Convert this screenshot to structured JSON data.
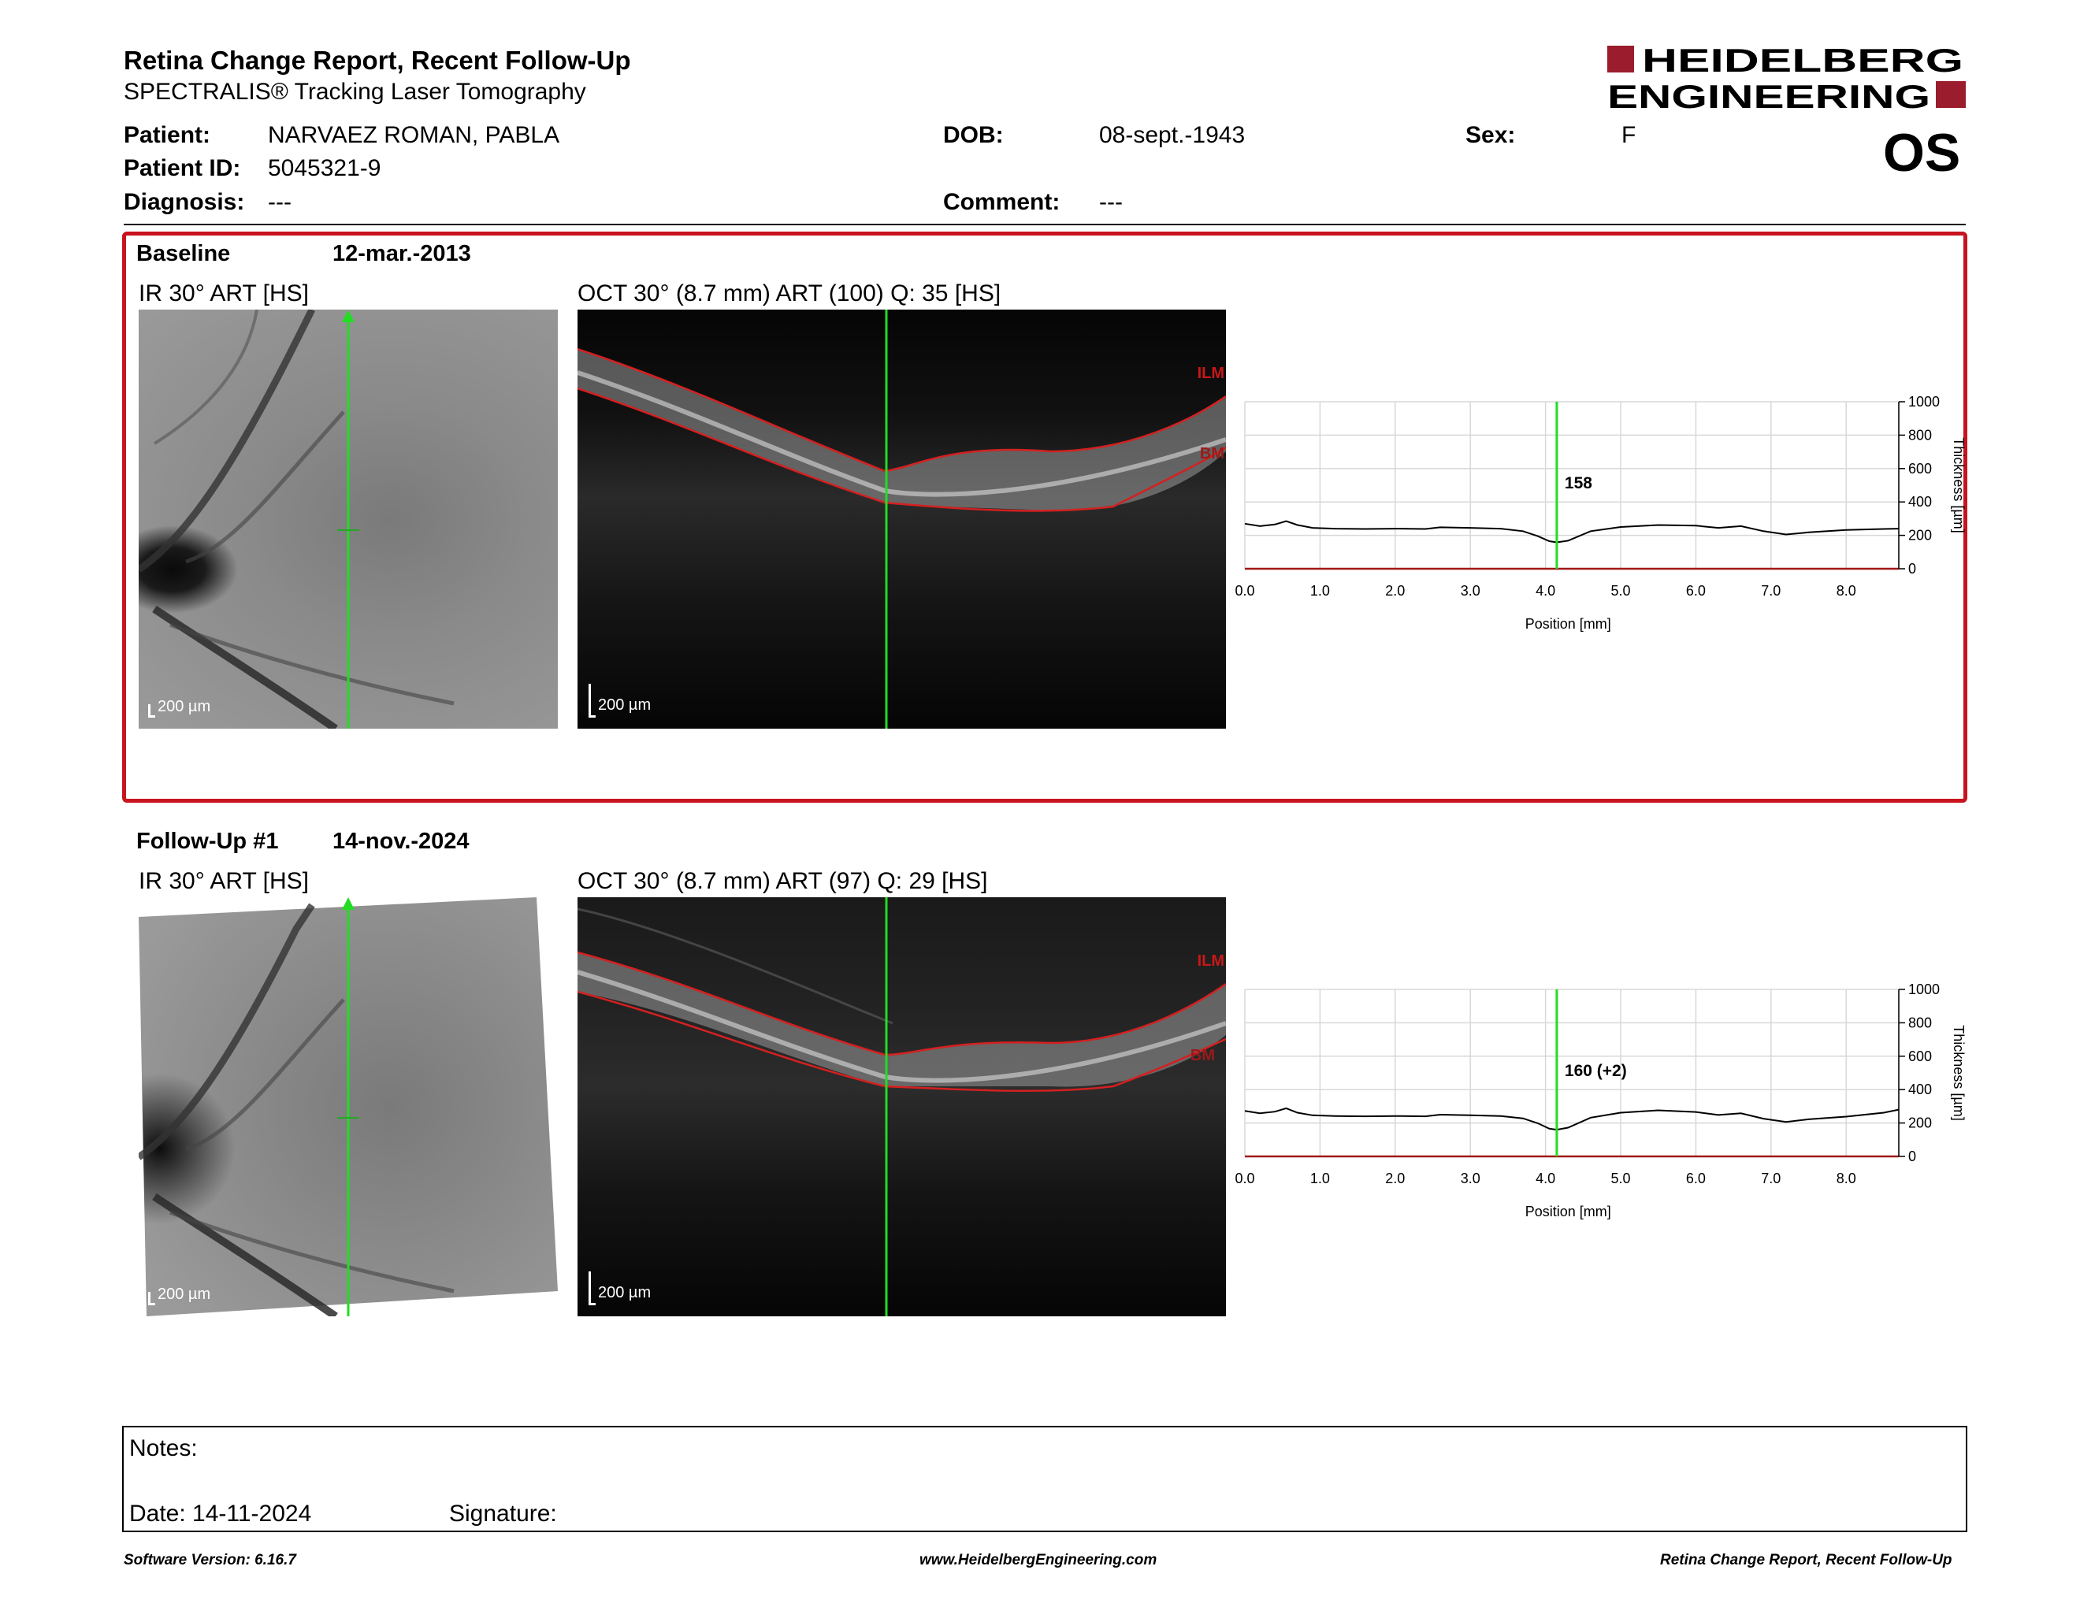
{
  "report": {
    "title": "Retina Change Report, Recent Follow-Up",
    "subtitle": "SPECTRALIS® Tracking Laser Tomography",
    "logo_lines": [
      "HEIDELBERG",
      "ENGINEERING"
    ],
    "eye": "OS"
  },
  "patient": {
    "name_label": "Patient:",
    "name": "NARVAEZ ROMAN, PABLA",
    "id_label": "Patient ID:",
    "id": "5045321-9",
    "diagnosis_label": "Diagnosis:",
    "diagnosis": "---",
    "dob_label": "DOB:",
    "dob": "08-sept.-1943",
    "comment_label": "Comment:",
    "comment": "---",
    "sex_label": "Sex:",
    "sex": "F"
  },
  "baseline": {
    "label": "Baseline",
    "date": "12-mar.-2013",
    "ir_title": "IR 30° ART [HS]",
    "oct_title": "OCT 30° (8.7 mm) ART (100) Q: 35 [HS]",
    "scale_ir": "200 µm",
    "scale_oct": "200 µm",
    "layer_top": "ILM",
    "layer_bottom": "BM"
  },
  "followup": {
    "label": "Follow-Up #1",
    "date": "14-nov.-2024",
    "ir_title": "IR 30° ART [HS]",
    "oct_title": "OCT 30° (8.7 mm) ART (97) Q: 29 [HS]",
    "scale_ir": "200 µm",
    "scale_oct": "200 µm",
    "layer_top": "ILM",
    "layer_bottom": "BM"
  },
  "chart_data": [
    {
      "type": "line",
      "xlabel": "Position [mm]",
      "ylabel": "Thickness [µm]",
      "xlim": [
        0.0,
        8.7
      ],
      "ylim": [
        0,
        1000
      ],
      "xticks": [
        "0.0",
        "1.0",
        "2.0",
        "3.0",
        "4.0",
        "5.0",
        "6.0",
        "7.0",
        "8.0"
      ],
      "yticks": [
        "0",
        "200",
        "400",
        "600",
        "800",
        "1000"
      ],
      "marker_x": 4.15,
      "marker_label": "158",
      "marker_color": "#22dd22",
      "series": [
        {
          "x": [
            0.0,
            0.2,
            0.4,
            0.55,
            0.7,
            0.9,
            1.2,
            1.6,
            2.0,
            2.4,
            2.6,
            3.0,
            3.4,
            3.7,
            3.9,
            4.05,
            4.15,
            4.3,
            4.6,
            5.0,
            5.5,
            6.0,
            6.3,
            6.6,
            6.9,
            7.2,
            7.5,
            8.0,
            8.5,
            8.7
          ],
          "y": [
            270,
            255,
            265,
            285,
            262,
            245,
            240,
            238,
            240,
            238,
            248,
            245,
            240,
            225,
            195,
            165,
            158,
            168,
            225,
            250,
            262,
            258,
            245,
            255,
            225,
            205,
            218,
            232,
            238,
            240
          ]
        }
      ]
    },
    {
      "type": "line",
      "xlabel": "Position [mm]",
      "ylabel": "Thickness [µm]",
      "xlim": [
        0.0,
        8.7
      ],
      "ylim": [
        0,
        1000
      ],
      "xticks": [
        "0.0",
        "1.0",
        "2.0",
        "3.0",
        "4.0",
        "5.0",
        "6.0",
        "7.0",
        "8.0"
      ],
      "yticks": [
        "0",
        "200",
        "400",
        "600",
        "800",
        "1000"
      ],
      "marker_x": 4.15,
      "marker_label": "160 (+2)",
      "marker_color": "#22dd22",
      "series": [
        {
          "x": [
            0.0,
            0.2,
            0.4,
            0.55,
            0.7,
            0.9,
            1.2,
            1.6,
            2.0,
            2.4,
            2.6,
            3.0,
            3.4,
            3.7,
            3.9,
            4.05,
            4.15,
            4.3,
            4.6,
            5.0,
            5.5,
            6.0,
            6.3,
            6.6,
            6.9,
            7.2,
            7.5,
            8.0,
            8.5,
            8.7
          ],
          "y": [
            272,
            258,
            268,
            288,
            262,
            246,
            242,
            240,
            242,
            240,
            250,
            246,
            242,
            228,
            198,
            166,
            160,
            172,
            232,
            262,
            276,
            266,
            248,
            258,
            226,
            206,
            222,
            238,
            262,
            280
          ]
        }
      ]
    }
  ],
  "notes": {
    "notes_label": "Notes:",
    "date_label": "Date: 14-11-2024",
    "signature_label": "Signature:"
  },
  "footer": {
    "left": "Software Version: 6.16.7",
    "center": "www.HeidelbergEngineering.com",
    "right": "Retina Change Report, Recent Follow-Up"
  }
}
